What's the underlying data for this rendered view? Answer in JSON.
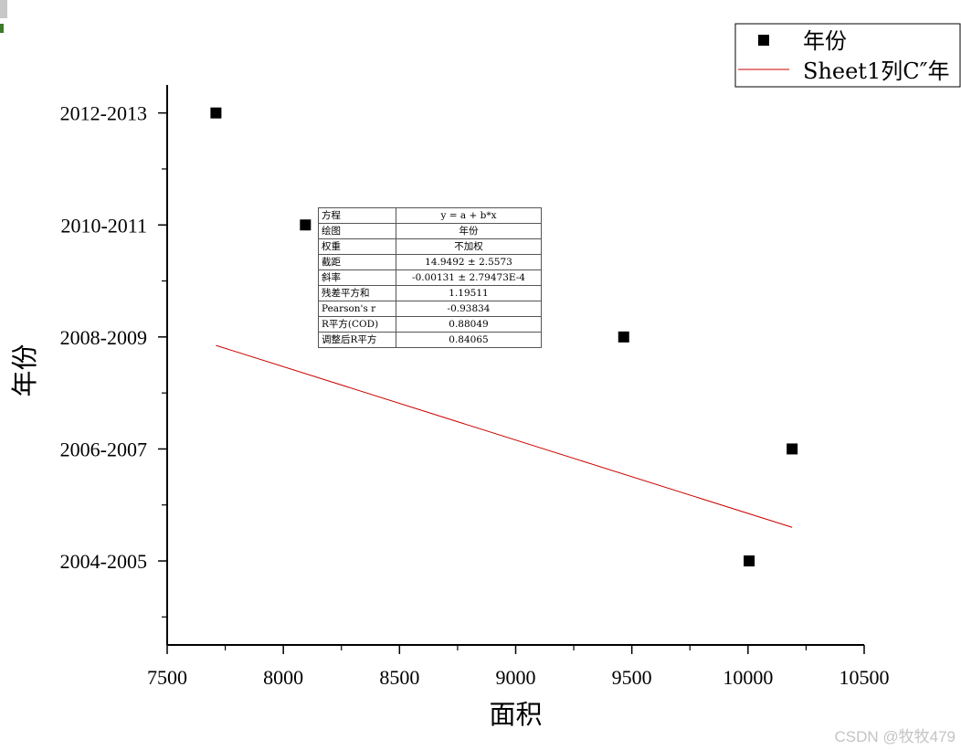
{
  "chart_data": {
    "type": "scatter",
    "xlabel": "面积",
    "ylabel": "年份",
    "xlim": [
      7500,
      10500
    ],
    "ylim": [
      -0.5,
      9.5
    ],
    "x_ticks": [
      7500,
      8000,
      8500,
      9000,
      9500,
      10000,
      10500
    ],
    "y_tick_values": [
      1,
      3,
      5,
      7,
      9
    ],
    "y_tick_labels": [
      "2004-2005",
      "2006-2007",
      "2008-2009",
      "2010-2011",
      "2012-2013"
    ],
    "series": [
      {
        "name": "年份",
        "kind": "scatter",
        "marker": "square",
        "color": "#000000",
        "points": [
          {
            "x": 7710,
            "y": 9
          },
          {
            "x": 8095,
            "y": 7
          },
          {
            "x": 9465,
            "y": 5
          },
          {
            "x": 10190,
            "y": 3
          },
          {
            "x": 10005,
            "y": 1
          }
        ]
      },
      {
        "name": "Sheet1列C″年",
        "kind": "line",
        "color": "#cc0000",
        "x_range": [
          7710,
          10190
        ],
        "intercept": 14.9492,
        "slope": -0.00131
      }
    ],
    "legend_position": "top-right",
    "fit_table": [
      {
        "key": "方程",
        "value": "y = a + b*x"
      },
      {
        "key": "绘图",
        "value": "年份"
      },
      {
        "key": "权重",
        "value": "不加权"
      },
      {
        "key": "截距",
        "value": "14.9492 ± 2.5573"
      },
      {
        "key": "斜率",
        "value": "-0.00131 ± 2.79473E-4"
      },
      {
        "key": "残差平方和",
        "value": "1.19511"
      },
      {
        "key": "Pearson's r",
        "value": "-0.93834"
      },
      {
        "key": "R平方(COD)",
        "value": "0.88049"
      },
      {
        "key": "调整后R平方",
        "value": "0.84065"
      }
    ]
  },
  "watermark": "CSDN @牧牧479"
}
